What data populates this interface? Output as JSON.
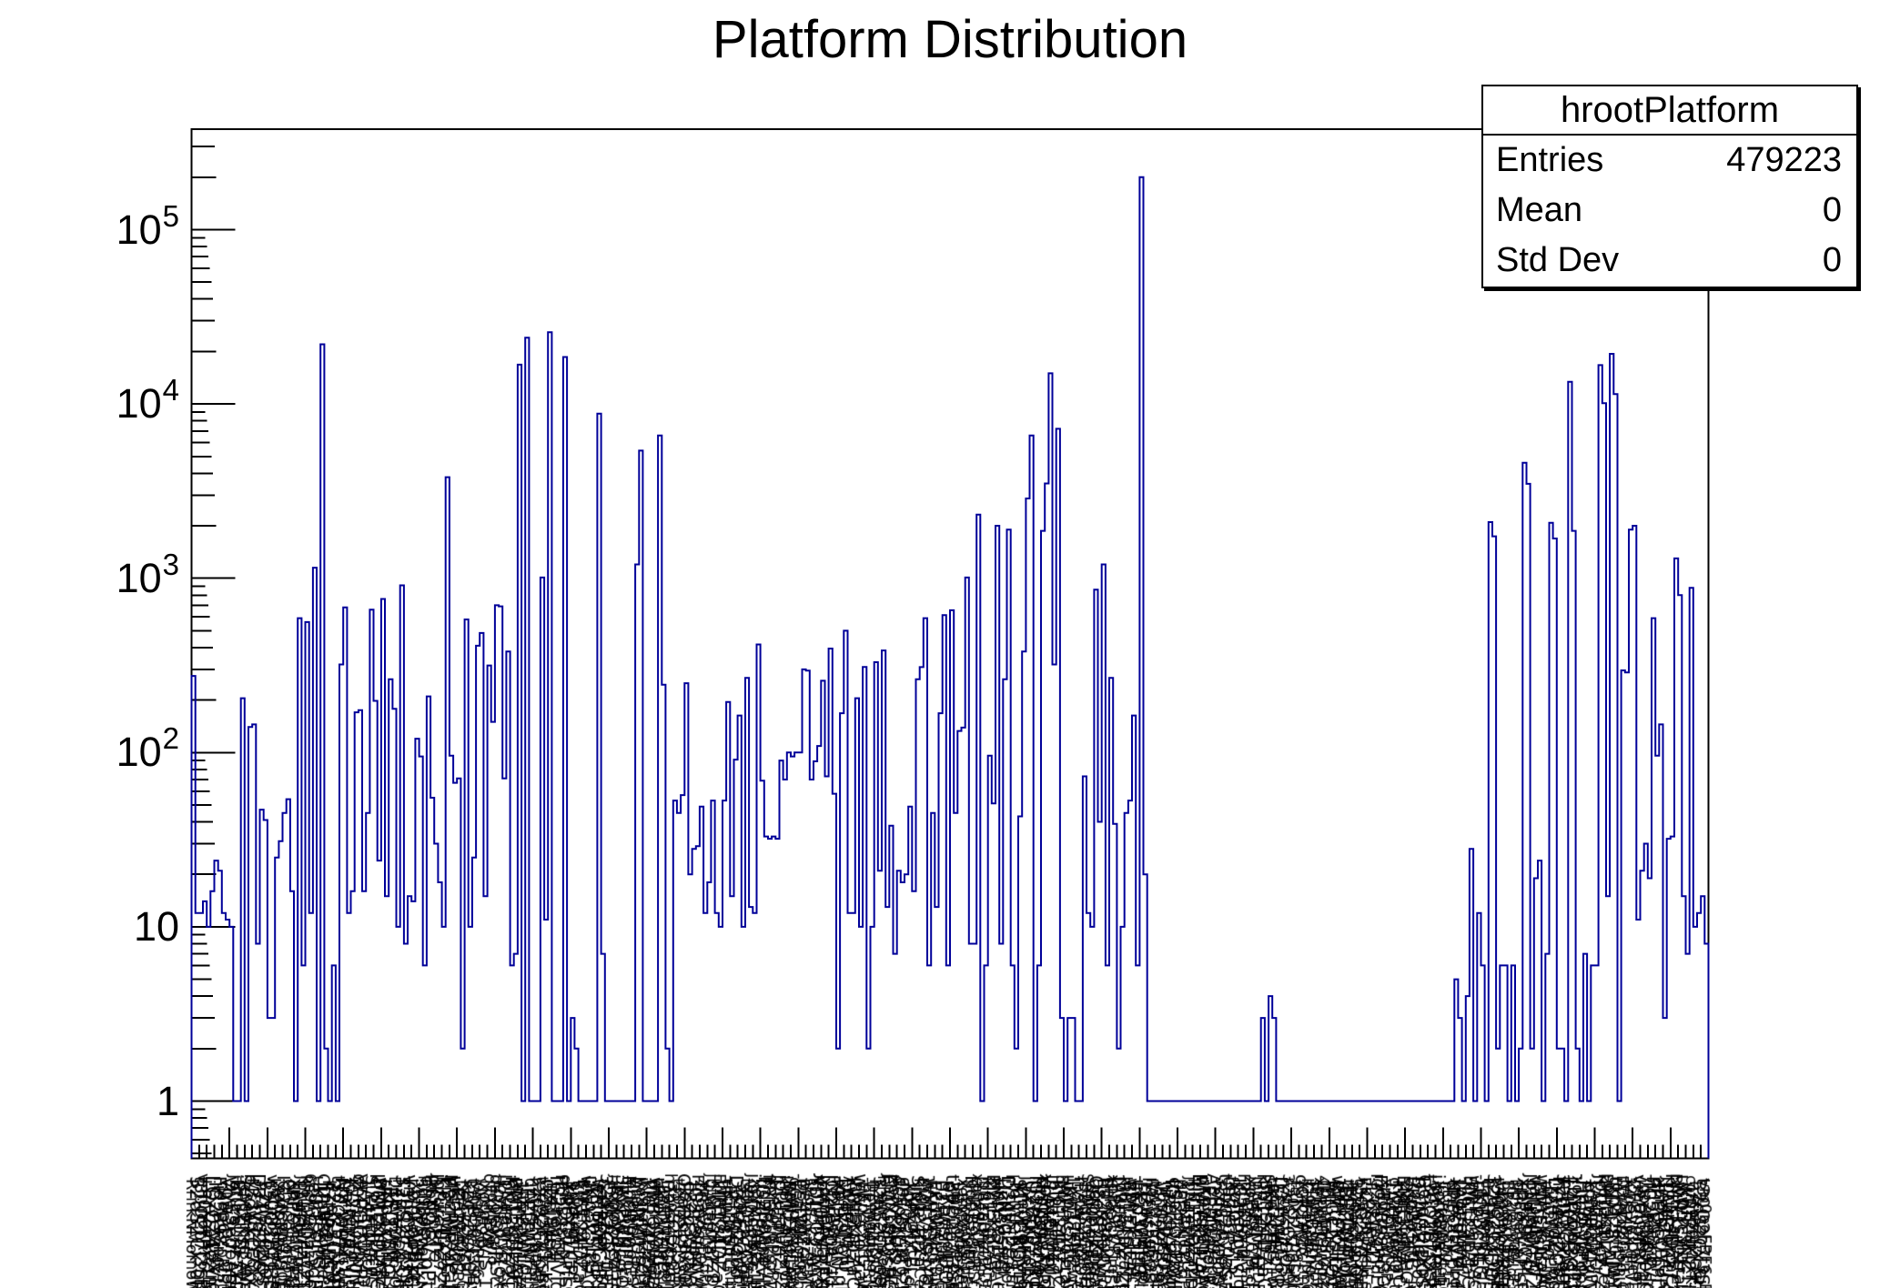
{
  "title": "Platform Distribution",
  "stats_box": {
    "title": "hrootPlatform",
    "rows": [
      {
        "label": "Entries",
        "value": "479223"
      },
      {
        "label": "Mean",
        "value": "0"
      },
      {
        "label": "Std Dev",
        "value": "0"
      }
    ]
  },
  "y_axis": {
    "scale": "log",
    "tick_labels": [
      "1",
      "10",
      "10^2",
      "10^3",
      "10^4",
      "10^5"
    ],
    "range_min": 0.47,
    "range_max": 375000
  },
  "x_axis": {
    "labels_legible": false,
    "description": "several hundred platform-name bin labels drawn vertically below the axis, overlapping into an unreadable black band"
  },
  "colors": {
    "histogram_line": "#000099",
    "axis": "#000000",
    "text": "#000000",
    "background": "#ffffff"
  },
  "chart_data": {
    "type": "bar",
    "title": "Platform Distribution",
    "xlabel": "",
    "ylabel": "",
    "y_scale": "log",
    "ylim": [
      0.47,
      375000
    ],
    "bin_count": 400,
    "legend": "none",
    "grid": false,
    "values": [
      275,
      12,
      12,
      14,
      10,
      16,
      24,
      21,
      12,
      11,
      10,
      1,
      1,
      205,
      1,
      140,
      145,
      8,
      47,
      41,
      3,
      3,
      25,
      31,
      45,
      54,
      16,
      1,
      590,
      6,
      560,
      12,
      1150,
      1,
      22000,
      2,
      1,
      6,
      1,
      320,
      680,
      12,
      16,
      170,
      175,
      16,
      45,
      660,
      198,
      24,
      760,
      15,
      263,
      178,
      10,
      910,
      8,
      15,
      14,
      120,
      95,
      6,
      210,
      55,
      30,
      18,
      10,
      3800,
      96,
      67,
      71,
      2,
      580,
      10,
      25,
      410,
      485,
      15,
      316,
      150,
      700,
      690,
      71,
      380,
      6,
      7,
      16800,
      1,
      24000,
      1,
      1,
      1,
      1010,
      11,
      25800,
      1,
      1,
      1,
      18600,
      1,
      3,
      2,
      1,
      1,
      1,
      1,
      1,
      8800,
      7,
      1,
      1,
      1,
      1,
      1,
      1,
      1,
      1,
      1200,
      5400,
      1,
      1,
      1,
      1,
      6600,
      245,
      2,
      1,
      53,
      45,
      57,
      250,
      20,
      28,
      29,
      49,
      12,
      18,
      53,
      12,
      10,
      53,
      195,
      15,
      91,
      163,
      10,
      268,
      13,
      12,
      417,
      69,
      33,
      32,
      33,
      32,
      90,
      70,
      100,
      95,
      100,
      100,
      300,
      295,
      70,
      89,
      109,
      258,
      73,
      395,
      58,
      2,
      168,
      500,
      12,
      12,
      205,
      10,
      310,
      2,
      10,
      330,
      21,
      385,
      13,
      38,
      7,
      21,
      18,
      20,
      49,
      16,
      263,
      309,
      590,
      6,
      45,
      13,
      168,
      615,
      6,
      655,
      45,
      133,
      139,
      1010,
      8,
      8,
      2320,
      1,
      6,
      96,
      51,
      2000,
      8,
      263,
      1900,
      6,
      2,
      43,
      380,
      2870,
      6600,
      1,
      6,
      1870,
      3500,
      15000,
      320,
      7200,
      3,
      1,
      3,
      3,
      1,
      1,
      73,
      12,
      10,
      860,
      40,
      1200,
      6,
      268,
      39,
      2,
      10,
      45,
      53,
      163,
      6,
      200000,
      20,
      1,
      1,
      1,
      1,
      1,
      1,
      1,
      1,
      1,
      1,
      1,
      1,
      1,
      1,
      1,
      1,
      1,
      1,
      1,
      1,
      1,
      1,
      1,
      1,
      1,
      1,
      1,
      1,
      1,
      1,
      3,
      1,
      4,
      3,
      1,
      1,
      1,
      1,
      1,
      1,
      1,
      1,
      1,
      1,
      1,
      1,
      1,
      1,
      1,
      1,
      1,
      1,
      1,
      1,
      1,
      1,
      1,
      1,
      1,
      1,
      1,
      1,
      1,
      1,
      1,
      1,
      1,
      1,
      1,
      1,
      1,
      1,
      1,
      1,
      1,
      1,
      1,
      1,
      1,
      1,
      1,
      5,
      3,
      1,
      4,
      28,
      1,
      12,
      6,
      1,
      2100,
      1740,
      2,
      6,
      6,
      1,
      6,
      1,
      2,
      4600,
      3480,
      2,
      19,
      24,
      1,
      7,
      2080,
      1690,
      2,
      2,
      1,
      13400,
      1870,
      2,
      1,
      7,
      1,
      6,
      6,
      16700,
      10100,
      15,
      19400,
      11400,
      1,
      296,
      288,
      1900,
      2000,
      11,
      21,
      30,
      19,
      590,
      96,
      145,
      3,
      32,
      33,
      1300,
      800,
      15,
      7,
      880,
      10,
      12,
      15,
      8
    ]
  }
}
